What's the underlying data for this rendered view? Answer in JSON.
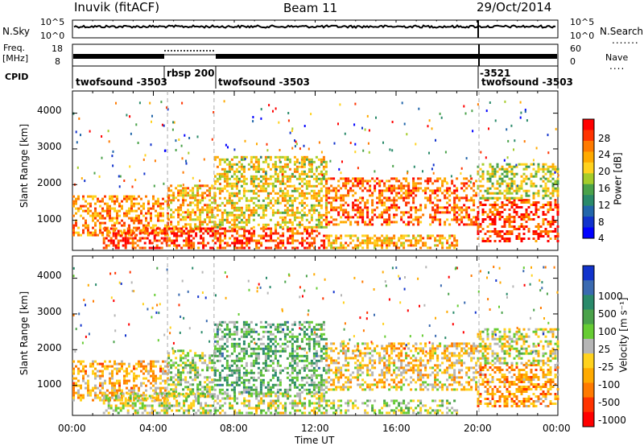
{
  "header": {
    "station": "Inuvik (fitACF)",
    "beam": "Beam 11",
    "date": "29/Oct/2014"
  },
  "left_labels": {
    "nsky": "N.Sky",
    "freq_line1": "Freq.",
    "freq_line2": "[MHz]",
    "cpid": "CPID"
  },
  "right_labels": {
    "nsearch": "N.Search",
    "nave": "Nave"
  },
  "noise_ticks_left": [
    "10^5",
    "10^0"
  ],
  "noise_ticks_right": [
    "10^5",
    "10^0"
  ],
  "freq_ticks_left": [
    "18",
    "8"
  ],
  "freq_ticks_right": [
    "60",
    "0"
  ],
  "cpid_segments": [
    {
      "label": "twofsound -3503",
      "start_hour": 0.0
    },
    {
      "label": "rbsp 200",
      "start_hour": 4.7
    },
    {
      "label": "twofsound -3503",
      "start_hour": 7.0
    },
    {
      "label": "-3521",
      "start_hour": 20.1
    },
    {
      "label": "twofsound -3503",
      "start_hour": 20.1
    }
  ],
  "power_panel": {
    "ylabel": "Slant Range [km]",
    "colorbar_label": "Power [dB]",
    "colorbar_ticks": [
      "28",
      "24",
      "20",
      "16",
      "12",
      "8",
      "4"
    ],
    "colors": [
      "#ff0000",
      "#ff3300",
      "#ff7a00",
      "#ffaa00",
      "#ffd21e",
      "#a5cc2a",
      "#4aa24a",
      "#2a8a6a",
      "#2266aa",
      "#1133cc",
      "#0000ff"
    ]
  },
  "velocity_panel": {
    "ylabel": "Slant Range [km]",
    "colorbar_label": "Velocity [m s⁻¹]",
    "colorbar_ticks": [
      "1000",
      "500",
      "100",
      "25",
      "-25",
      "-100",
      "-500",
      "-1000"
    ],
    "colors": [
      "#1133cc",
      "#3a6ab0",
      "#2a8a6a",
      "#4aa24a",
      "#66cc33",
      "#b5b5b5",
      "#ffd21e",
      "#ffaa00",
      "#ff7a00",
      "#ff3300",
      "#ff0000"
    ]
  },
  "x_axis": {
    "label": "Time UT",
    "ticks": [
      "00:00",
      "04:00",
      "08:00",
      "12:00",
      "16:00",
      "20:00",
      "00:00"
    ]
  },
  "chart_data": {
    "type": "heatmap",
    "title": "Inuvik (fitACF) Beam 11 29/Oct/2014",
    "xlabel": "Time UT",
    "ylabel": "Slant Range [km]",
    "xlim_hours": [
      0,
      24
    ],
    "ylim_km": [
      180,
      4600
    ],
    "y_ticks": [
      1000,
      2000,
      3000,
      4000
    ],
    "panels": [
      {
        "name": "Power",
        "unit": "dB",
        "colorbar_range": [
          0,
          30
        ],
        "echo_regions": [
          {
            "t_start": 0.0,
            "t_end": 4.7,
            "r_min": 600,
            "r_max": 1700,
            "value": 22
          },
          {
            "t_start": 1.5,
            "t_end": 4.7,
            "r_min": 250,
            "r_max": 800,
            "value": 26
          },
          {
            "t_start": 4.7,
            "t_end": 7.0,
            "r_min": 700,
            "r_max": 2000,
            "value": 20
          },
          {
            "t_start": 4.5,
            "t_end": 12.5,
            "r_min": 200,
            "r_max": 800,
            "value": 26
          },
          {
            "t_start": 7.0,
            "t_end": 12.5,
            "r_min": 800,
            "r_max": 2800,
            "value": 18
          },
          {
            "t_start": 12.5,
            "t_end": 20.0,
            "r_min": 900,
            "r_max": 2200,
            "value": 24
          },
          {
            "t_start": 12.5,
            "t_end": 19.0,
            "r_min": 200,
            "r_max": 600,
            "value": 20
          },
          {
            "t_start": 20.0,
            "t_end": 24.0,
            "r_min": 400,
            "r_max": 1600,
            "value": 26
          },
          {
            "t_start": 20.0,
            "t_end": 24.0,
            "r_min": 1600,
            "r_max": 2600,
            "value": 16
          }
        ]
      },
      {
        "name": "Velocity",
        "unit": "m s^-1",
        "colorbar_range": [
          -1000,
          1000
        ],
        "echo_regions": [
          {
            "t_start": 0.0,
            "t_end": 4.7,
            "r_min": 600,
            "r_max": 1700,
            "value": -300
          },
          {
            "t_start": 1.5,
            "t_end": 4.7,
            "r_min": 250,
            "r_max": 800,
            "value": 0
          },
          {
            "t_start": 4.7,
            "t_end": 7.0,
            "r_min": 700,
            "r_max": 2000,
            "value": 100
          },
          {
            "t_start": 4.5,
            "t_end": 12.5,
            "r_min": 200,
            "r_max": 800,
            "value": 0
          },
          {
            "t_start": 7.0,
            "t_end": 12.5,
            "r_min": 800,
            "r_max": 2800,
            "value": 300
          },
          {
            "t_start": 12.5,
            "t_end": 20.0,
            "r_min": 900,
            "r_max": 2200,
            "value": -200
          },
          {
            "t_start": 12.5,
            "t_end": 19.0,
            "r_min": 200,
            "r_max": 600,
            "value": 100
          },
          {
            "t_start": 20.0,
            "t_end": 24.0,
            "r_min": 400,
            "r_max": 1600,
            "value": -400
          },
          {
            "t_start": 20.0,
            "t_end": 24.0,
            "r_min": 1600,
            "r_max": 2600,
            "value": -50
          }
        ]
      }
    ]
  }
}
